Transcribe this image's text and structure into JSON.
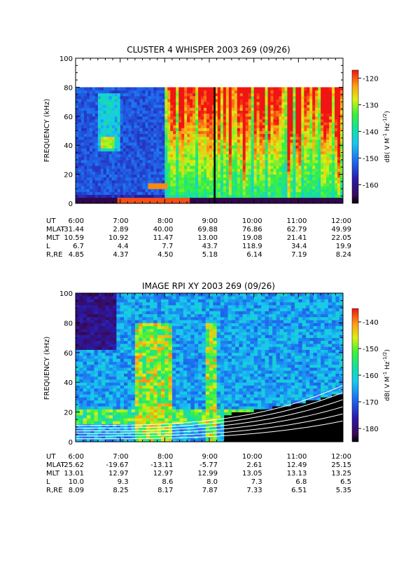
{
  "chart_data": [
    {
      "type": "heatmap",
      "title": "CLUSTER 4 WHISPER 2003 269 (09/26)",
      "ylabel": "FREQUENCY (kHz)",
      "ylim": [
        0,
        100
      ],
      "y_ticks": [
        "0",
        "20",
        "40",
        "60",
        "80",
        "100"
      ],
      "x_ticks": [
        "6:00",
        "7:00",
        "8:00",
        "9:00",
        "10:00",
        "11:00",
        "12:00"
      ],
      "colorbar": {
        "label": "dB( V M⁻¹ Hz⁻¹ᐟ²)",
        "label_parts": {
          "prefix": "dB( V M",
          "sup1": "-1",
          "mid": " Hz",
          "sup2": "-1/2",
          "suffix": ")"
        },
        "range": [
          -167,
          -117
        ],
        "ticks": [
          "-120",
          "-130",
          "-140",
          "-150",
          "-160"
        ],
        "tick_values": [
          -120,
          -130,
          -140,
          -150,
          -160
        ]
      },
      "data_ceiling_khz": 80,
      "ephemeris": {
        "rows": [
          {
            "name": "UT",
            "values": [
              "6:00",
              "7:00",
              "8:00",
              "9:00",
              "10:00",
              "11:00",
              "12:00"
            ]
          },
          {
            "name": "MLAT",
            "values": [
              "-31.44",
              "2.89",
              "40.00",
              "69.88",
              "76.86",
              "62.79",
              "49.99"
            ]
          },
          {
            "name": "MLT",
            "values": [
              "10.59",
              "10.92",
              "11.47",
              "13.00",
              "19.08",
              "21.41",
              "22.05"
            ]
          },
          {
            "name": "L",
            "values": [
              "6.7",
              "4.4",
              "7.7",
              "43.7",
              "118.9",
              "34.4",
              "19.9"
            ]
          },
          {
            "name": "R,RE",
            "values": [
              "4.85",
              "4.37",
              "4.50",
              "5.18",
              "6.14",
              "7.19",
              "8.24"
            ]
          }
        ]
      }
    },
    {
      "type": "heatmap",
      "title": "IMAGE RPI XY 2003 269 (09/26)",
      "ylabel": "FREQUENCY (kHz)",
      "ylim": [
        0,
        100
      ],
      "y_ticks": [
        "0",
        "20",
        "40",
        "60",
        "80",
        "100"
      ],
      "x_ticks": [
        "6:00",
        "7:00",
        "8:00",
        "9:00",
        "10:00",
        "11:00",
        "12:00"
      ],
      "colorbar": {
        "label": "dB( V M⁻¹ Hz⁻¹ᐟ²)",
        "label_parts": {
          "prefix": "dB( V M",
          "sup1": "-1",
          "mid": " Hz",
          "sup2": "-1/2",
          "suffix": ")"
        },
        "range": [
          -185,
          -135
        ],
        "ticks": [
          "-140",
          "-150",
          "-160",
          "-170",
          "-180"
        ],
        "tick_values": [
          -140,
          -150,
          -160,
          -170,
          -180
        ]
      },
      "ephemeris": {
        "rows": [
          {
            "name": "UT",
            "values": [
              "6:00",
              "7:00",
              "8:00",
              "9:00",
              "10:00",
              "11:00",
              "12:00"
            ]
          },
          {
            "name": "MLAT",
            "values": [
              "-25.62",
              "-19.67",
              "-13.11",
              "-5.77",
              "2.61",
              "12.49",
              "25.15"
            ]
          },
          {
            "name": "MLT",
            "values": [
              "13.01",
              "12.97",
              "12.97",
              "12.99",
              "13.05",
              "13.13",
              "13.25"
            ]
          },
          {
            "name": "L",
            "values": [
              "10.0",
              "9.3",
              "8.6",
              "8.0",
              "7.3",
              "6.8",
              "6.5"
            ]
          },
          {
            "name": "R,RE",
            "values": [
              "8.09",
              "8.25",
              "8.17",
              "7.87",
              "7.33",
              "6.51",
              "5.35"
            ]
          }
        ]
      }
    }
  ]
}
